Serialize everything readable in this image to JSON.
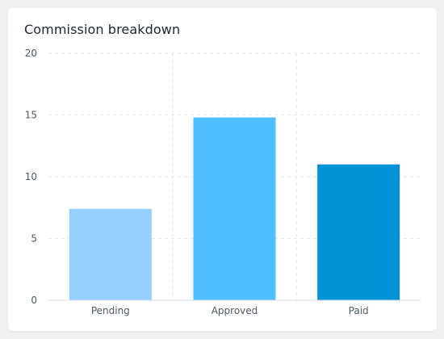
{
  "card": {
    "title": "Commission breakdown"
  },
  "chart_data": {
    "type": "bar",
    "title": "Commission breakdown",
    "categories": [
      "Pending",
      "Approved",
      "Paid"
    ],
    "values": [
      7.4,
      14.8,
      11.0
    ],
    "bar_colors": [
      "#94cfff",
      "#4fbfff",
      "#0094d6"
    ],
    "ylim": [
      0,
      20
    ],
    "yticks": [
      0,
      5,
      10,
      15,
      20
    ],
    "xlabel": "",
    "ylabel": "",
    "grid": true,
    "legend": "none"
  },
  "colors": {
    "grid": "#e3e6ea",
    "axis": "#d7dbe0",
    "tick_text": "#4e5a66",
    "title_text": "#1b2735"
  }
}
